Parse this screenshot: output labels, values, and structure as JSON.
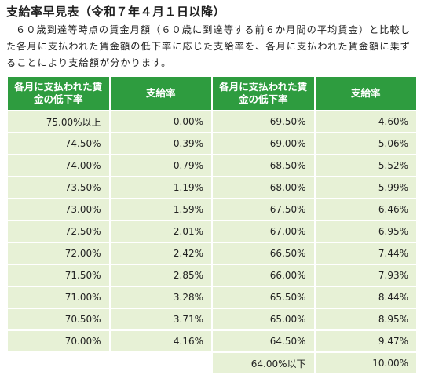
{
  "title": "支給率早見表（令和７年４月１日以降）",
  "description": "６０歳到達等時点の賃金月額（６０歳に到達等する前６か月間の平均賃金）と比較した各月に支払われた賃金額の低下率に応じた支給率を、各月に支払われた賃金額に乗ずることにより支給額が分かります。",
  "table": {
    "headers": [
      "各月に支払われた賃金の低下率",
      "支給率",
      "各月に支払われた賃金の低下率",
      "支給率"
    ],
    "rows": [
      [
        "75.00%以上",
        "0.00%",
        "69.50%",
        "4.60%"
      ],
      [
        "74.50%",
        "0.39%",
        "69.00%",
        "5.06%"
      ],
      [
        "74.00%",
        "0.79%",
        "68.50%",
        "5.52%"
      ],
      [
        "73.50%",
        "1.19%",
        "68.00%",
        "5.99%"
      ],
      [
        "73.00%",
        "1.59%",
        "67.50%",
        "6.46%"
      ],
      [
        "72.50%",
        "2.01%",
        "67.00%",
        "6.95%"
      ],
      [
        "72.00%",
        "2.42%",
        "66.50%",
        "7.44%"
      ],
      [
        "71.50%",
        "2.85%",
        "66.00%",
        "7.93%"
      ],
      [
        "71.00%",
        "3.28%",
        "65.50%",
        "8.44%"
      ],
      [
        "70.50%",
        "3.71%",
        "65.00%",
        "8.95%"
      ],
      [
        "70.00%",
        "4.16%",
        "64.50%",
        "9.47%"
      ]
    ],
    "last_row": [
      "64.00%以下",
      "10.00%"
    ]
  },
  "colors": {
    "header_bg": "#2e9c3f",
    "cell_bg": "#e7f1d6"
  }
}
